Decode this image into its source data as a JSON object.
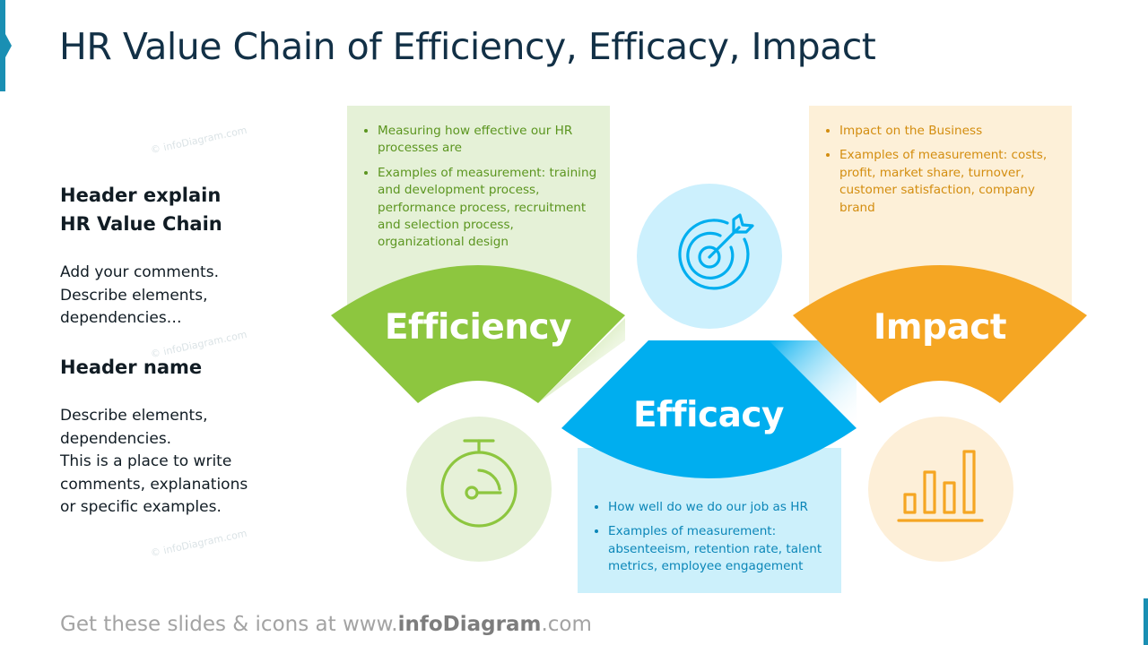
{
  "title": "HR Value Chain of Efficiency, Efficacy, Impact",
  "sidebar": {
    "header1": [
      "Header explain",
      "HR Value Chain"
    ],
    "text1": [
      "Add your comments.",
      "Describe elements,",
      "dependencies…"
    ],
    "header2": "Header name",
    "text2": [
      "Describe elements,",
      "dependencies.",
      "This is a place to write",
      "comments, explanations",
      "or specific examples."
    ]
  },
  "efficiency": {
    "label": "Efficiency",
    "bullets": [
      "Measuring how effective our HR processes are",
      "Examples of measurement: training and development process, performance process, recruitment and selection process, organizational design"
    ],
    "icon": "stopwatch-icon",
    "color": "#8dc63f"
  },
  "efficacy": {
    "label": "Efficacy",
    "bullets": [
      "How well do we do our job as HR",
      "Examples of measurement: absenteeism, retention rate, talent metrics, employee engagement"
    ],
    "icon": "target-icon",
    "color": "#00aeef"
  },
  "impact": {
    "label": "Impact",
    "bullets": [
      "Impact on the Business",
      "Examples of measurement: costs, profit, market share, turnover, customer satisfaction, company brand"
    ],
    "icon": "bar-chart-icon",
    "color": "#f5a623"
  },
  "watermark": "© infoDiagram.com",
  "footer": {
    "prefix": "Get these slides & icons at www.",
    "brand": "infoDiagram",
    "suffix": ".com"
  }
}
